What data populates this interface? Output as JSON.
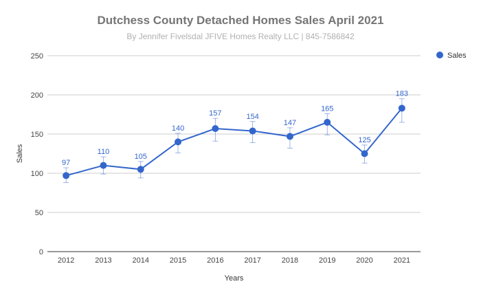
{
  "chart_data": {
    "type": "line",
    "title": "Dutchess County Detached Homes Sales April 2021",
    "subtitle": "By Jennifer Fivelsdal JFIVE Homes Realty LLC | 845-7586842",
    "xlabel": "Years",
    "ylabel": "Sales",
    "categories": [
      "2012",
      "2013",
      "2014",
      "2015",
      "2016",
      "2017",
      "2018",
      "2019",
      "2020",
      "2021"
    ],
    "series": [
      {
        "name": "Sales",
        "values": [
          97,
          110,
          105,
          140,
          157,
          154,
          147,
          165,
          125,
          183
        ],
        "error_low": [
          88,
          99,
          94,
          126,
          141,
          139,
          132,
          149,
          113,
          165
        ],
        "error_high": [
          107,
          121,
          115,
          151,
          170,
          166,
          158,
          176,
          136,
          195
        ]
      }
    ],
    "ylim": [
      0,
      250
    ],
    "yticks": [
      0,
      50,
      100,
      150,
      200,
      250
    ],
    "grid": true,
    "legend_position": "right",
    "colors": {
      "series": "#3366cc",
      "grid": "#cccccc",
      "axis": "#333333"
    }
  }
}
